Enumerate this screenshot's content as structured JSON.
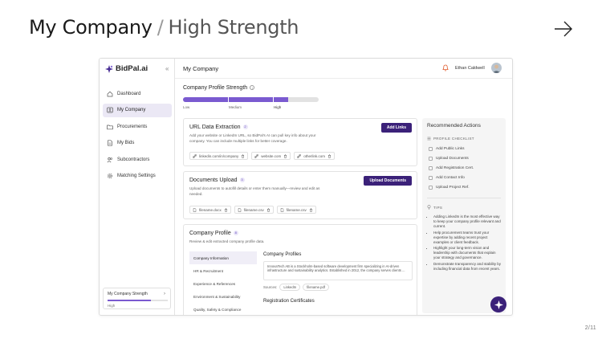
{
  "slide": {
    "title_main": "My Company",
    "separator": "/",
    "title_sub": "High Strength",
    "page_number": "2/11"
  },
  "app": {
    "logo_text": "BidPal.ai",
    "page_title": "My Company",
    "user_name": "Ethan Caldwell",
    "accent_color": "#3b2179",
    "progress_color": "#7a5ad0"
  },
  "sidebar": {
    "items": [
      {
        "label": "Dashboard",
        "icon": "home-icon"
      },
      {
        "label": "My Company",
        "icon": "user-card-icon"
      },
      {
        "label": "Procurements",
        "icon": "folder-icon"
      },
      {
        "label": "My Bids",
        "icon": "document-icon"
      },
      {
        "label": "Subcontractors",
        "icon": "users-icon"
      },
      {
        "label": "Matching Settings",
        "icon": "gear-icon"
      }
    ],
    "strength_card": {
      "label": "My Company Strength",
      "level": "High",
      "progress": 0.72
    }
  },
  "profile_strength": {
    "title": "Company Profile Strength",
    "levels": [
      "Low",
      "Medium",
      "High"
    ],
    "current_level": "High"
  },
  "url_card": {
    "title": "URL Data Extraction",
    "badge": "2",
    "description": "Add your website or LinkedIn URL, so BidPal's AI can pull key info about your company. You can include multiple links for better coverage.",
    "button": "Add Links",
    "chips": [
      "linkedin.com/in/company",
      "website.com",
      "otherlink.com"
    ]
  },
  "docs_card": {
    "title": "Documents Upload",
    "badge": "3",
    "description": "Upload documents to autofill details or enter them manually—review and edit as needed.",
    "button": "Upload Documents",
    "chips": [
      "filename.docx",
      "filename.csv",
      "filename.csv"
    ]
  },
  "profile_card": {
    "title": "Company Profile",
    "badge": "8",
    "description": "Review & edit extracted company profile data.",
    "tabs": [
      "Company Information",
      "HR & Recruitment",
      "Experience & References",
      "Environment & Sustainability",
      "Quality, Safety & Compliance"
    ],
    "section_title": "Company Profiles",
    "profile_text": "InnovaTech AB is a Stockholm-based software development firm specializing in AI-driven infrastructure and sustainability analytics. Established in 2012, the company serves clients ...",
    "sources_label": "Sources:",
    "sources": [
      "LinkedIn",
      "filename.pdf"
    ],
    "next_section": "Registration Certificates"
  },
  "recommended": {
    "title": "Recommended Actions",
    "checklist_title": "PROFILE CHECKLIST",
    "checklist": [
      "Add Public Links",
      "Upload Documents",
      "Add Registration Cert.",
      "Add Contact Info",
      "Upload Project Ref."
    ],
    "tips_title": "TIPS",
    "tips": [
      "Adding LinkedIn is the most effective way to keep your company profile relevant and current.",
      "Help procurement teams trust your expertise by adding recent project examples or client feedback.",
      "Highlight your long-term vision and leadership with documents that explain your strategy and governance.",
      "Demonstrate transparency and stability by including financial data from recent years."
    ]
  }
}
